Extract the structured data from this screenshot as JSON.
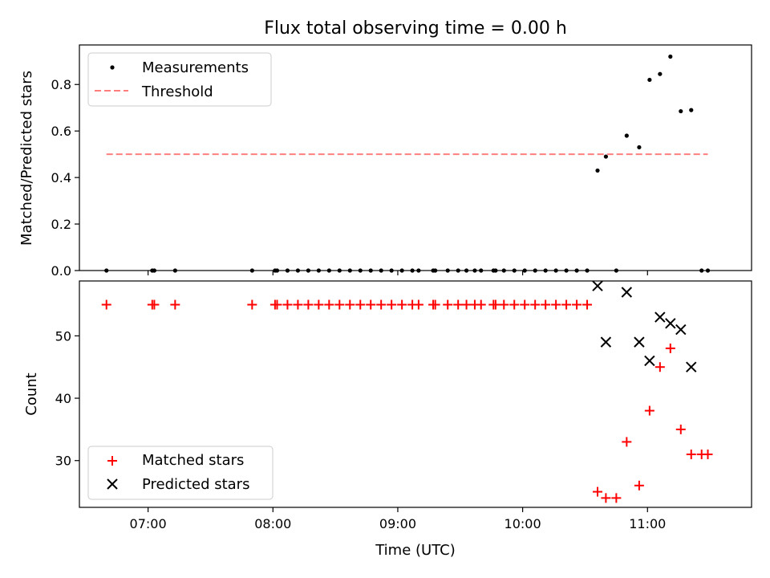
{
  "chart_data": [
    {
      "type": "scatter",
      "title": "Flux total observing time = 0.00 h",
      "xlabel": "",
      "ylabel": "Matched/Predicted stars",
      "ylim": [
        0,
        0.97
      ],
      "xlim": [
        "06:27",
        "11:50"
      ],
      "yticks": [
        "0.0",
        "0.2",
        "0.4",
        "0.6",
        "0.8"
      ],
      "legend_position": "top-left",
      "series": [
        {
          "name": "Measurements",
          "marker": "dot",
          "color": "#000000",
          "x": [
            "06:40",
            "07:02",
            "07:03",
            "07:13",
            "07:50",
            "08:01",
            "08:02",
            "08:07",
            "08:12",
            "08:17",
            "08:22",
            "08:27",
            "08:32",
            "08:37",
            "08:42",
            "08:47",
            "08:52",
            "08:57",
            "09:02",
            "09:07",
            "09:10",
            "09:17",
            "09:18",
            "09:24",
            "09:29",
            "09:33",
            "09:37",
            "09:40",
            "09:46",
            "09:47",
            "09:51",
            "09:56",
            "10:01",
            "10:06",
            "10:11",
            "10:16",
            "10:21",
            "10:26",
            "10:31",
            "10:36",
            "10:40",
            "10:45",
            "10:50",
            "10:56",
            "11:01",
            "11:06",
            "11:11",
            "11:16",
            "11:21",
            "11:26",
            "11:29"
          ],
          "y": [
            0,
            0,
            0,
            0,
            0,
            0,
            0,
            0,
            0,
            0,
            0,
            0,
            0,
            0,
            0,
            0,
            0,
            0,
            0,
            0,
            0,
            0,
            0,
            0,
            0,
            0,
            0,
            0,
            0,
            0,
            0,
            0,
            0,
            0,
            0,
            0,
            0,
            0,
            0,
            0.43,
            0.49,
            0,
            0.58,
            0.53,
            0.82,
            0.845,
            0.92,
            0.685,
            0.69,
            0,
            0
          ]
        },
        {
          "name": "Threshold",
          "marker": "dashed-line",
          "color": "#ff7f7f",
          "x": [
            "06:40",
            "11:29"
          ],
          "y": [
            0.5,
            0.5
          ]
        }
      ]
    },
    {
      "type": "scatter",
      "title": "",
      "xlabel": "Time (UTC)",
      "ylabel": "Count",
      "ylim": [
        22.5,
        58.8
      ],
      "xlim": [
        "06:27",
        "11:50"
      ],
      "xticks": [
        "07:00",
        "08:00",
        "09:00",
        "10:00",
        "11:00"
      ],
      "yticks": [
        "30",
        "40",
        "50"
      ],
      "legend_position": "bottom-left",
      "series": [
        {
          "name": "Matched stars",
          "marker": "plus",
          "color": "#ff0000",
          "x": [
            "06:40",
            "07:02",
            "07:03",
            "07:13",
            "07:50",
            "08:01",
            "08:02",
            "08:07",
            "08:12",
            "08:17",
            "08:22",
            "08:27",
            "08:32",
            "08:37",
            "08:42",
            "08:47",
            "08:52",
            "08:57",
            "09:02",
            "09:07",
            "09:10",
            "09:17",
            "09:18",
            "09:24",
            "09:29",
            "09:33",
            "09:37",
            "09:40",
            "09:46",
            "09:47",
            "09:51",
            "09:56",
            "10:01",
            "10:06",
            "10:11",
            "10:16",
            "10:21",
            "10:26",
            "10:31",
            "10:36",
            "10:40",
            "10:45",
            "10:50",
            "10:56",
            "11:01",
            "11:06",
            "11:11",
            "11:16",
            "11:21",
            "11:26",
            "11:29"
          ],
          "y": [
            55,
            55,
            55,
            55,
            55,
            55,
            55,
            55,
            55,
            55,
            55,
            55,
            55,
            55,
            55,
            55,
            55,
            55,
            55,
            55,
            55,
            55,
            55,
            55,
            55,
            55,
            55,
            55,
            55,
            55,
            55,
            55,
            55,
            55,
            55,
            55,
            55,
            55,
            55,
            25,
            24,
            24,
            33,
            26,
            38,
            45,
            48,
            35,
            31,
            31,
            31
          ]
        },
        {
          "name": "Predicted stars",
          "marker": "x",
          "color": "#000000",
          "x": [
            "10:36",
            "10:40",
            "10:50",
            "10:56",
            "11:01",
            "11:06",
            "11:11",
            "11:16",
            "11:21"
          ],
          "y": [
            58,
            49,
            57,
            49,
            46,
            53,
            52,
            51,
            45
          ]
        }
      ]
    }
  ]
}
